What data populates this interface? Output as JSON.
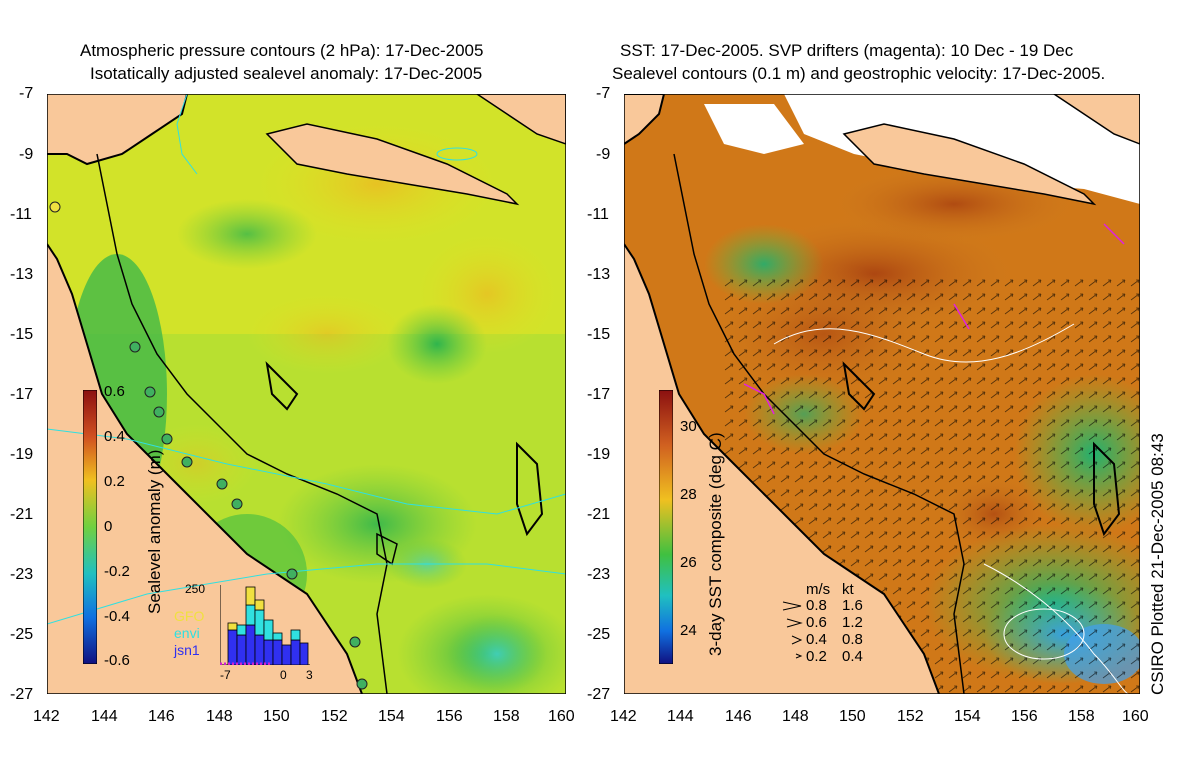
{
  "left_panel": {
    "title_line1": "Atmospheric pressure contours (2 hPa): 17-Dec-2005",
    "title_line2": "Isotatically adjusted sealevel anomaly: 17-Dec-2005",
    "colorbar_label": "Sealevel anomaly (m)",
    "colorbar_ticks": [
      "0.6",
      "0.4",
      "0.2",
      "0",
      "-0.2",
      "-0.4",
      "-0.6"
    ],
    "histogram": {
      "ymax_label": "250",
      "x_labels": [
        "-7",
        "0",
        "3"
      ],
      "legend": [
        {
          "name": "GFO",
          "color": "#f0e040"
        },
        {
          "name": "envi",
          "color": "#30e0e0"
        },
        {
          "name": "jsn1",
          "color": "#3030f0"
        }
      ]
    }
  },
  "right_panel": {
    "title_line1": "SST: 17-Dec-2005. SVP drifters (magenta): 10 Dec - 19 Dec",
    "title_line2": "Sealevel contours (0.1 m) and geostrophic velocity: 17-Dec-2005.",
    "colorbar_label": "3-day SST composite (deg C)",
    "colorbar_ticks": [
      "30",
      "28",
      "26",
      "24"
    ],
    "velocity_legend": {
      "header_ms": "m/s",
      "header_kt": "kt",
      "rows": [
        {
          "ms": "0.8",
          "kt": "1.6"
        },
        {
          "ms": "0.6",
          "kt": "1.2"
        },
        {
          "ms": "0.4",
          "kt": "0.8"
        },
        {
          "ms": "0.2",
          "kt": "0.4"
        }
      ]
    }
  },
  "axes": {
    "lat_ticks": [
      "-7",
      "-9",
      "-11",
      "-13",
      "-15",
      "-17",
      "-19",
      "-21",
      "-23",
      "-25",
      "-27"
    ],
    "lon_ticks": [
      "142",
      "144",
      "146",
      "148",
      "150",
      "152",
      "154",
      "156",
      "158",
      "160"
    ]
  },
  "credit": "CSIRO Plotted 21-Dec-2005 08:43",
  "colors": {
    "land": "#f9c89a",
    "ssl_positive": "#e8e020",
    "ssl_zero": "#60c840",
    "sst_warm": "#c8641a",
    "sst_cool": "#40c070"
  }
}
